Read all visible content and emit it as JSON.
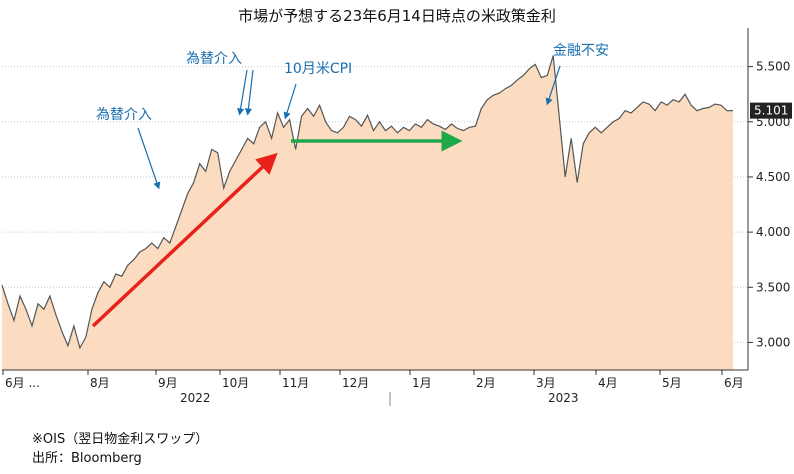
{
  "chart_data": {
    "type": "area",
    "title": "市場が予想する23年6月14日時点の米政策金利",
    "xlabel": "",
    "ylabel": "",
    "ylim": [
      2.75,
      5.85
    ],
    "yticks": [
      "3.000",
      "3.500",
      "4.000",
      "4.500",
      "5.000",
      "5.500"
    ],
    "ytick_values": [
      3.0,
      3.5,
      4.0,
      4.5,
      5.0,
      5.5
    ],
    "xticks": [
      "6月 ...",
      "8月",
      "9月",
      "10月",
      "11月",
      "12月",
      "1月",
      "2月",
      "3月",
      "4月",
      "5月",
      "6月"
    ],
    "years": [
      "2022",
      "2023"
    ],
    "last_value_label": "5.101",
    "series": [
      {
        "values": [
          3.52,
          3.35,
          3.2,
          3.42,
          3.3,
          3.15,
          3.35,
          3.3,
          3.42,
          3.25,
          3.1,
          2.97,
          3.15,
          2.95,
          3.05,
          3.3,
          3.45,
          3.55,
          3.5,
          3.62,
          3.6,
          3.7,
          3.75,
          3.82,
          3.85,
          3.9,
          3.85,
          3.95,
          3.9,
          4.05,
          4.2,
          4.35,
          4.45,
          4.62,
          4.55,
          4.75,
          4.72,
          4.4,
          4.55,
          4.65,
          4.75,
          4.85,
          4.8,
          4.95,
          5.0,
          4.85,
          5.08,
          4.95,
          5.02,
          4.75,
          5.05,
          5.12,
          5.05,
          5.15,
          5.0,
          4.92,
          4.9,
          4.95,
          5.05,
          5.02,
          4.96,
          5.06,
          4.92,
          5.0,
          4.92,
          4.96,
          4.9,
          4.95,
          4.92,
          4.98,
          4.95,
          5.02,
          4.98,
          4.96,
          4.93,
          4.98,
          4.94,
          4.92,
          4.95,
          4.96,
          5.12,
          5.2,
          5.24,
          5.26,
          5.3,
          5.33,
          5.38,
          5.42,
          5.48,
          5.52,
          5.4,
          5.42,
          5.6,
          5.05,
          4.5,
          4.85,
          4.45,
          4.8,
          4.9,
          4.95,
          4.9,
          4.95,
          5.0,
          5.03,
          5.1,
          5.08,
          5.13,
          5.18,
          5.16,
          5.1,
          5.18,
          5.15,
          5.2,
          5.18,
          5.25,
          5.15,
          5.1,
          5.12,
          5.13,
          5.16,
          5.15,
          5.1,
          5.101
        ]
      }
    ],
    "annotations": [
      "為替介入",
      "為替介入",
      "10月米CPI",
      "金融不安"
    ]
  },
  "colors": {
    "area_fill": "#fbdcc0",
    "line": "#555555",
    "annotation_text": "#1a6fb0",
    "red_arrow": "#e8221b",
    "green_arrow": "#1fa84a",
    "grid": "#c8c8c8",
    "last_label_bg": "#222222"
  },
  "footnotes": {
    "line1": "※OIS（翌日物金利スワップ）",
    "line2": "出所：Bloomberg"
  }
}
